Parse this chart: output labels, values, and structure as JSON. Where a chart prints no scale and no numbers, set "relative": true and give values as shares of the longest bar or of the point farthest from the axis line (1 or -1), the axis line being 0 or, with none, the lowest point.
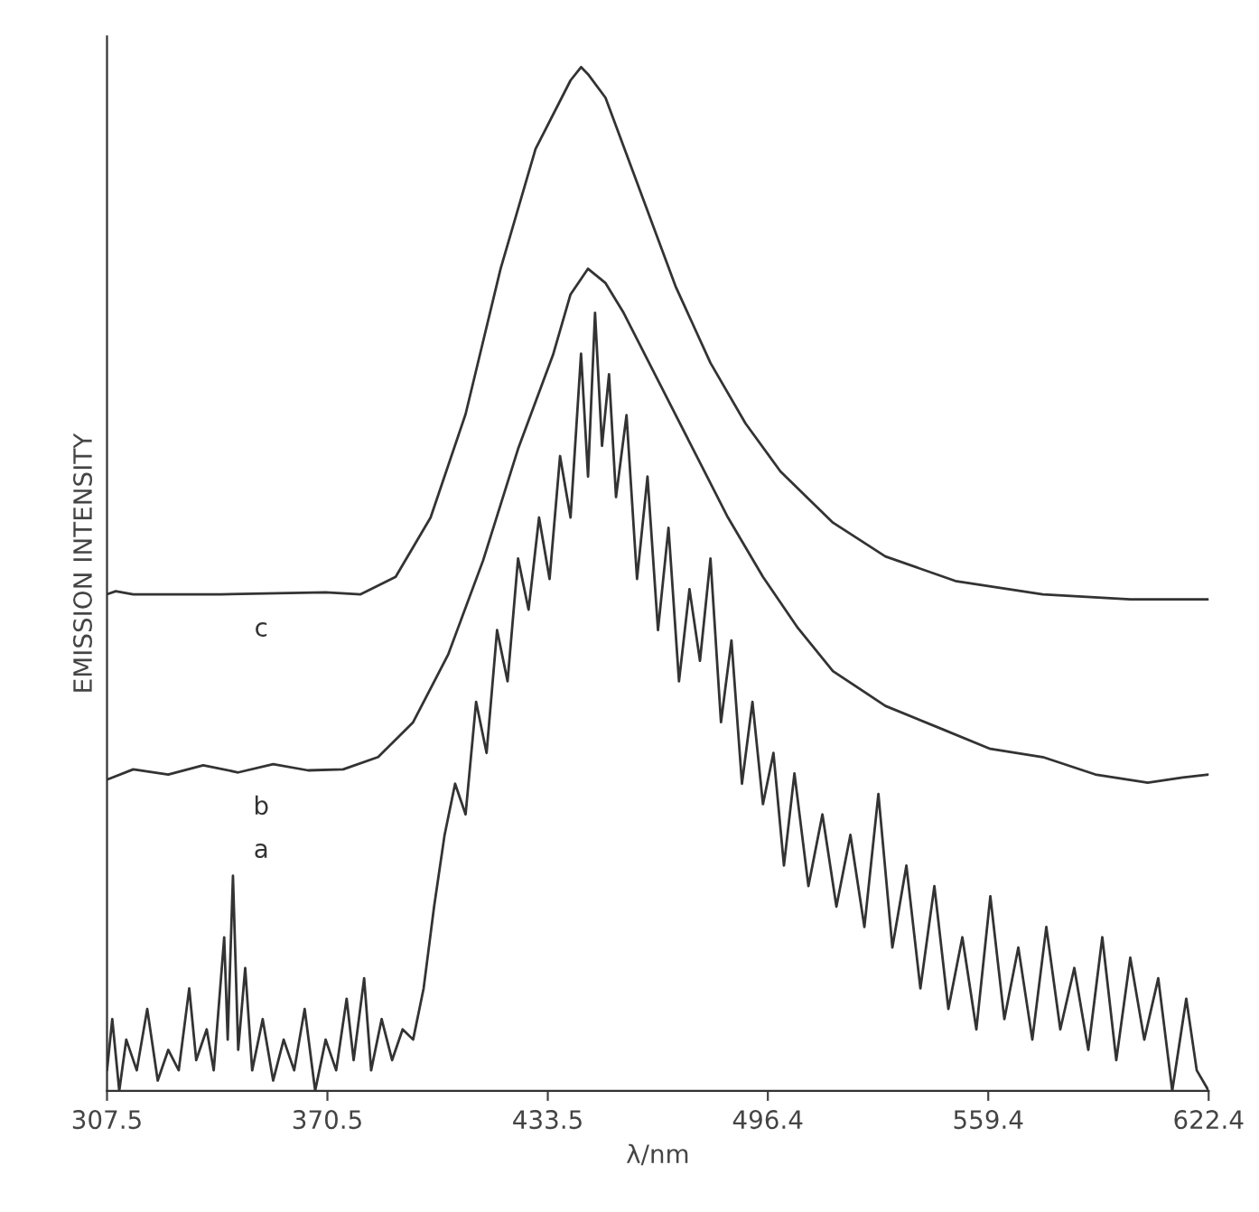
{
  "chart_data": {
    "type": "line",
    "relative": true,
    "xlabel": "λ/nm",
    "ylabel": "EMISSION INTENSITY",
    "xlim": [
      307.5,
      622.4
    ],
    "xticks": [
      307.5,
      370.5,
      433.5,
      496.4,
      559.4,
      622.4
    ],
    "series": [
      {
        "name": "a",
        "color": "#333333",
        "x": [
          307.5,
          309,
          311,
          313,
          316,
          319,
          322,
          325,
          328,
          331,
          333,
          336,
          338,
          341,
          342,
          343.5,
          345,
          347,
          349,
          352,
          355,
          358,
          361,
          364,
          367,
          370,
          373,
          376,
          378,
          381,
          383,
          386,
          389,
          392,
          395,
          398,
          401,
          404,
          407,
          410,
          413,
          416,
          419,
          422,
          425,
          428,
          431,
          434,
          437,
          440,
          443,
          445,
          447,
          449,
          451,
          453,
          456,
          459,
          462,
          465,
          468,
          471,
          474,
          477,
          480,
          483,
          486,
          489,
          492,
          495,
          498,
          501,
          504,
          508,
          512,
          516,
          520,
          524,
          528,
          532,
          536,
          540,
          544,
          548,
          552,
          556,
          560,
          564,
          568,
          572,
          576,
          580,
          584,
          588,
          592,
          596,
          600,
          604,
          608,
          612,
          616,
          619,
          622.4
        ],
        "values": [
          0.02,
          0.07,
          0.0,
          0.05,
          0.02,
          0.08,
          0.01,
          0.04,
          0.02,
          0.1,
          0.03,
          0.06,
          0.02,
          0.15,
          0.05,
          0.21,
          0.04,
          0.12,
          0.02,
          0.07,
          0.01,
          0.05,
          0.02,
          0.08,
          0.0,
          0.05,
          0.02,
          0.09,
          0.03,
          0.11,
          0.02,
          0.07,
          0.03,
          0.06,
          0.05,
          0.1,
          0.18,
          0.25,
          0.3,
          0.27,
          0.38,
          0.33,
          0.45,
          0.4,
          0.52,
          0.47,
          0.56,
          0.5,
          0.62,
          0.56,
          0.72,
          0.6,
          0.76,
          0.63,
          0.7,
          0.58,
          0.66,
          0.5,
          0.6,
          0.45,
          0.55,
          0.4,
          0.49,
          0.42,
          0.52,
          0.36,
          0.44,
          0.3,
          0.38,
          0.28,
          0.33,
          0.22,
          0.31,
          0.2,
          0.27,
          0.18,
          0.25,
          0.16,
          0.29,
          0.14,
          0.22,
          0.1,
          0.2,
          0.08,
          0.15,
          0.06,
          0.19,
          0.07,
          0.14,
          0.05,
          0.16,
          0.06,
          0.12,
          0.04,
          0.15,
          0.03,
          0.13,
          0.05,
          0.11,
          0.0,
          0.09,
          0.02,
          0.0
        ]
      },
      {
        "name": "b",
        "color": "#333333",
        "x": [
          307.5,
          315,
          325,
          335,
          345,
          355,
          365,
          375,
          385,
          395,
          405,
          415,
          425,
          435,
          440,
          445,
          450,
          455,
          465,
          475,
          485,
          495,
          505,
          515,
          530,
          545,
          560,
          575,
          590,
          605,
          615,
          622.4
        ],
        "values": [
          0.304,
          0.314,
          0.309,
          0.318,
          0.311,
          0.319,
          0.313,
          0.314,
          0.326,
          0.36,
          0.426,
          0.518,
          0.627,
          0.719,
          0.778,
          0.803,
          0.789,
          0.761,
          0.694,
          0.627,
          0.56,
          0.502,
          0.452,
          0.41,
          0.376,
          0.355,
          0.334,
          0.326,
          0.309,
          0.301,
          0.306,
          0.309
        ]
      },
      {
        "name": "c",
        "color": "#333333",
        "x": [
          307.5,
          310,
          315,
          340,
          370,
          380,
          390,
          400,
          410,
          420,
          430,
          440,
          443,
          445,
          450,
          460,
          470,
          480,
          490,
          500,
          515,
          530,
          550,
          575,
          600,
          622.4
        ],
        "values": [
          0.485,
          0.488,
          0.485,
          0.485,
          0.487,
          0.485,
          0.502,
          0.56,
          0.661,
          0.803,
          0.92,
          0.987,
          1.0,
          0.993,
          0.97,
          0.878,
          0.786,
          0.711,
          0.652,
          0.605,
          0.555,
          0.522,
          0.498,
          0.485,
          0.48,
          0.48
        ]
      }
    ]
  }
}
